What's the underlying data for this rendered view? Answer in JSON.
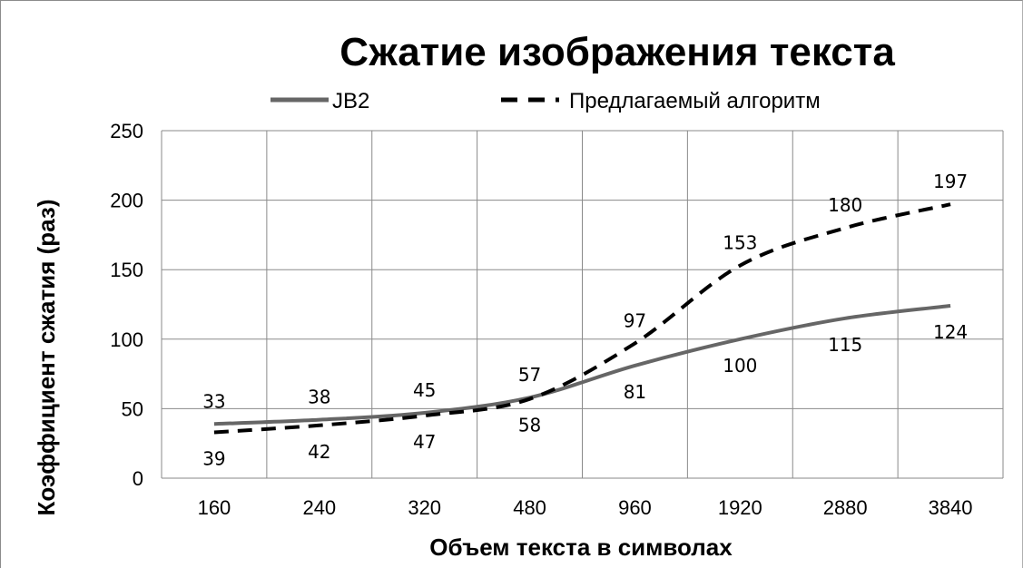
{
  "chart_data": {
    "type": "line",
    "title": "Сжатие изображения текста",
    "xlabel": "Объем текста в символах",
    "ylabel": "Коэффициент сжатия (раз)",
    "categories": [
      "160",
      "240",
      "320",
      "480",
      "960",
      "1920",
      "2880",
      "3840"
    ],
    "ylim": [
      0,
      250
    ],
    "yticks": [
      "0",
      "50",
      "100",
      "150",
      "200",
      "250"
    ],
    "grid": true,
    "legend_position": "top",
    "series": [
      {
        "name": "JB2",
        "values": [
          39,
          42,
          47,
          58,
          81,
          100,
          115,
          124
        ],
        "color": "#666666",
        "style": "solid"
      },
      {
        "name": "Предлагаемый алгоритм",
        "values": [
          33,
          38,
          45,
          57,
          97,
          153,
          180,
          197
        ],
        "color": "#000000",
        "style": "dashed"
      }
    ]
  }
}
